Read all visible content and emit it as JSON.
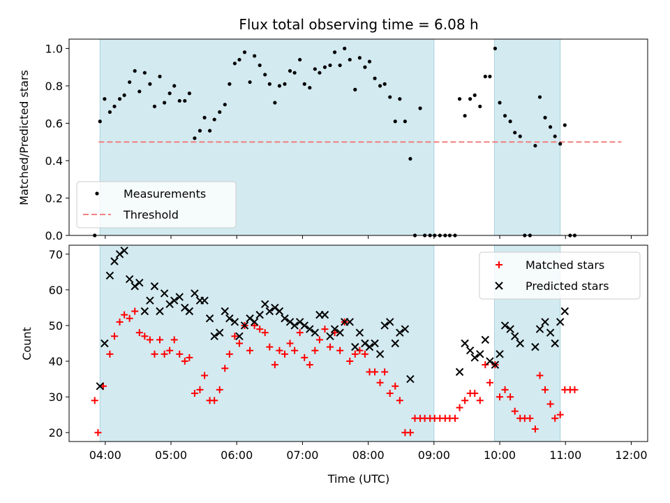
{
  "chart_data": {
    "title": "Flux total observing time = 6.08 h",
    "xlabel": "Time (UTC)",
    "x_unit": "hours UTC",
    "xlim": [
      3.45,
      12.25
    ],
    "xticks": [
      {
        "v": 4,
        "label": "04:00"
      },
      {
        "v": 5,
        "label": "05:00"
      },
      {
        "v": 6,
        "label": "06:00"
      },
      {
        "v": 7,
        "label": "07:00"
      },
      {
        "v": 8,
        "label": "08:00"
      },
      {
        "v": 9,
        "label": "09:00"
      },
      {
        "v": 10,
        "label": "10:00"
      },
      {
        "v": 11,
        "label": "11:00"
      },
      {
        "v": 12,
        "label": "12:00"
      }
    ],
    "shaded_intervals": [
      [
        3.92,
        9.0
      ],
      [
        9.92,
        10.92
      ]
    ],
    "shade_color": "#d3eaf0",
    "top": {
      "type": "scatter",
      "ylabel": "Matched/Predicted stars",
      "ylim": [
        0,
        1.05
      ],
      "yticks": [
        {
          "v": 0,
          "label": "0.0"
        },
        {
          "v": 0.2,
          "label": "0.2"
        },
        {
          "v": 0.4,
          "label": "0.4"
        },
        {
          "v": 0.6,
          "label": "0.6"
        },
        {
          "v": 0.8,
          "label": "0.8"
        },
        {
          "v": 1.0,
          "label": "1.0"
        }
      ],
      "threshold": {
        "value": 0.5,
        "x_range": [
          3.9,
          11.85
        ],
        "color": "#f08080"
      },
      "legend": {
        "position": "lower-left",
        "items": [
          {
            "label": "Measurements",
            "marker": "dot",
            "color": "#000000"
          },
          {
            "label": "Threshold",
            "marker": "dash",
            "color": "#f08080"
          }
        ]
      },
      "measurements": [
        [
          3.84,
          0.0
        ],
        [
          3.92,
          0.61
        ],
        [
          3.99,
          0.73
        ],
        [
          4.07,
          0.66
        ],
        [
          4.14,
          0.69
        ],
        [
          4.22,
          0.73
        ],
        [
          4.29,
          0.75
        ],
        [
          4.37,
          0.82
        ],
        [
          4.45,
          0.88
        ],
        [
          4.52,
          0.77
        ],
        [
          4.6,
          0.87
        ],
        [
          4.68,
          0.81
        ],
        [
          4.75,
          0.69
        ],
        [
          4.83,
          0.85
        ],
        [
          4.9,
          0.71
        ],
        [
          4.98,
          0.76
        ],
        [
          5.05,
          0.8
        ],
        [
          5.13,
          0.72
        ],
        [
          5.21,
          0.72
        ],
        [
          5.28,
          0.76
        ],
        [
          5.36,
          0.52
        ],
        [
          5.44,
          0.56
        ],
        [
          5.51,
          0.63
        ],
        [
          5.59,
          0.56
        ],
        [
          5.66,
          0.62
        ],
        [
          5.74,
          0.66
        ],
        [
          5.82,
          0.7
        ],
        [
          5.89,
          0.81
        ],
        [
          5.97,
          0.92
        ],
        [
          6.04,
          0.94
        ],
        [
          6.12,
          0.98
        ],
        [
          6.2,
          0.82
        ],
        [
          6.27,
          0.96
        ],
        [
          6.35,
          0.91
        ],
        [
          6.43,
          0.86
        ],
        [
          6.5,
          0.81
        ],
        [
          6.58,
          0.71
        ],
        [
          6.65,
          0.8
        ],
        [
          6.73,
          0.81
        ],
        [
          6.81,
          0.88
        ],
        [
          6.88,
          0.87
        ],
        [
          6.96,
          0.94
        ],
        [
          7.03,
          0.81
        ],
        [
          7.11,
          0.79
        ],
        [
          7.19,
          0.89
        ],
        [
          7.26,
          0.87
        ],
        [
          7.34,
          0.9
        ],
        [
          7.42,
          0.91
        ],
        [
          7.49,
          0.98
        ],
        [
          7.57,
          0.91
        ],
        [
          7.64,
          1.0
        ],
        [
          7.72,
          0.94
        ],
        [
          7.8,
          0.78
        ],
        [
          7.87,
          0.95
        ],
        [
          7.95,
          0.9
        ],
        [
          8.02,
          0.93
        ],
        [
          8.1,
          0.84
        ],
        [
          8.18,
          0.8
        ],
        [
          8.25,
          0.81
        ],
        [
          8.33,
          0.74
        ],
        [
          8.41,
          0.61
        ],
        [
          8.48,
          0.73
        ],
        [
          8.56,
          0.61
        ],
        [
          8.64,
          0.41
        ],
        [
          8.71,
          0.0
        ],
        [
          8.79,
          0.68
        ],
        [
          8.86,
          0.0
        ],
        [
          8.94,
          0.0
        ],
        [
          9.01,
          0.0
        ],
        [
          9.09,
          0.0
        ],
        [
          9.17,
          0.0
        ],
        [
          9.24,
          0.0
        ],
        [
          9.32,
          0.0
        ],
        [
          9.39,
          0.73
        ],
        [
          9.47,
          0.64
        ],
        [
          9.55,
          0.73
        ],
        [
          9.62,
          0.75
        ],
        [
          9.7,
          0.69
        ],
        [
          9.78,
          0.85
        ],
        [
          9.85,
          0.85
        ],
        [
          9.93,
          1.0
        ],
        [
          10.0,
          0.71
        ],
        [
          10.08,
          0.64
        ],
        [
          10.16,
          0.61
        ],
        [
          10.23,
          0.55
        ],
        [
          10.31,
          0.53
        ],
        [
          10.38,
          0.0
        ],
        [
          10.46,
          0.0
        ],
        [
          10.54,
          0.48
        ],
        [
          10.61,
          0.74
        ],
        [
          10.69,
          0.63
        ],
        [
          10.77,
          0.58
        ],
        [
          10.84,
          0.53
        ],
        [
          10.92,
          0.49
        ],
        [
          10.99,
          0.59
        ],
        [
          11.07,
          0.0
        ],
        [
          11.14,
          0.0
        ]
      ]
    },
    "bottom": {
      "type": "scatter",
      "ylabel": "Count",
      "ylim": [
        17.5,
        72.5
      ],
      "yticks": [
        {
          "v": 20,
          "label": "20"
        },
        {
          "v": 30,
          "label": "30"
        },
        {
          "v": 40,
          "label": "40"
        },
        {
          "v": 50,
          "label": "50"
        },
        {
          "v": 60,
          "label": "60"
        },
        {
          "v": 70,
          "label": "70"
        }
      ],
      "legend": {
        "position": "top-right",
        "items": [
          {
            "label": "Matched stars",
            "marker": "plus",
            "color": "#ff0000"
          },
          {
            "label": "Predicted stars",
            "marker": "x",
            "color": "#000000"
          }
        ]
      },
      "matched": [
        [
          3.84,
          29
        ],
        [
          3.89,
          20
        ],
        [
          3.97,
          33
        ],
        [
          4.07,
          42
        ],
        [
          4.14,
          47
        ],
        [
          4.22,
          51
        ],
        [
          4.29,
          53
        ],
        [
          4.37,
          52
        ],
        [
          4.45,
          54
        ],
        [
          4.52,
          48
        ],
        [
          4.6,
          47
        ],
        [
          4.68,
          46
        ],
        [
          4.75,
          42
        ],
        [
          4.83,
          46
        ],
        [
          4.9,
          42
        ],
        [
          4.98,
          43
        ],
        [
          5.05,
          46
        ],
        [
          5.13,
          42
        ],
        [
          5.21,
          40
        ],
        [
          5.28,
          41
        ],
        [
          5.36,
          31
        ],
        [
          5.44,
          32
        ],
        [
          5.51,
          36
        ],
        [
          5.59,
          29
        ],
        [
          5.66,
          29
        ],
        [
          5.74,
          32
        ],
        [
          5.82,
          38
        ],
        [
          5.89,
          42
        ],
        [
          5.97,
          47
        ],
        [
          6.04,
          45
        ],
        [
          6.12,
          50
        ],
        [
          6.2,
          43
        ],
        [
          6.27,
          50
        ],
        [
          6.35,
          49
        ],
        [
          6.43,
          48
        ],
        [
          6.5,
          44
        ],
        [
          6.58,
          39
        ],
        [
          6.65,
          43
        ],
        [
          6.73,
          42
        ],
        [
          6.81,
          45
        ],
        [
          6.88,
          43
        ],
        [
          6.96,
          48
        ],
        [
          7.03,
          41
        ],
        [
          7.11,
          39
        ],
        [
          7.19,
          43
        ],
        [
          7.26,
          46
        ],
        [
          7.34,
          49
        ],
        [
          7.42,
          44
        ],
        [
          7.49,
          48
        ],
        [
          7.57,
          43
        ],
        [
          7.64,
          51
        ],
        [
          7.72,
          40
        ],
        [
          7.8,
          42
        ],
        [
          7.87,
          43
        ],
        [
          7.95,
          42
        ],
        [
          8.02,
          37
        ],
        [
          8.1,
          37
        ],
        [
          8.18,
          34
        ],
        [
          8.25,
          37
        ],
        [
          8.33,
          31
        ],
        [
          8.41,
          33
        ],
        [
          8.48,
          29
        ],
        [
          8.56,
          20
        ],
        [
          8.64,
          20
        ],
        [
          8.71,
          24
        ],
        [
          8.79,
          24
        ],
        [
          8.86,
          24
        ],
        [
          8.94,
          24
        ],
        [
          9.01,
          24
        ],
        [
          9.09,
          24
        ],
        [
          9.17,
          24
        ],
        [
          9.24,
          24
        ],
        [
          9.32,
          24
        ],
        [
          9.39,
          27
        ],
        [
          9.47,
          29
        ],
        [
          9.55,
          31
        ],
        [
          9.62,
          31
        ],
        [
          9.7,
          29
        ],
        [
          9.78,
          39
        ],
        [
          9.85,
          34
        ],
        [
          9.93,
          39
        ],
        [
          10.0,
          30
        ],
        [
          10.08,
          32
        ],
        [
          10.16,
          30
        ],
        [
          10.23,
          26
        ],
        [
          10.31,
          24
        ],
        [
          10.38,
          24
        ],
        [
          10.46,
          24
        ],
        [
          10.54,
          21
        ],
        [
          10.61,
          36
        ],
        [
          10.69,
          32
        ],
        [
          10.77,
          28
        ],
        [
          10.84,
          24
        ],
        [
          10.92,
          25
        ],
        [
          10.99,
          32
        ],
        [
          11.07,
          32
        ],
        [
          11.14,
          32
        ]
      ],
      "predicted": [
        [
          3.92,
          33
        ],
        [
          3.99,
          45
        ],
        [
          4.07,
          64
        ],
        [
          4.14,
          68
        ],
        [
          4.22,
          70
        ],
        [
          4.29,
          71
        ],
        [
          4.37,
          63
        ],
        [
          4.45,
          61
        ],
        [
          4.52,
          62
        ],
        [
          4.6,
          54
        ],
        [
          4.68,
          57
        ],
        [
          4.75,
          61
        ],
        [
          4.83,
          54
        ],
        [
          4.9,
          59
        ],
        [
          4.98,
          56
        ],
        [
          5.05,
          57
        ],
        [
          5.13,
          58
        ],
        [
          5.21,
          55
        ],
        [
          5.28,
          54
        ],
        [
          5.36,
          59
        ],
        [
          5.44,
          57
        ],
        [
          5.51,
          57
        ],
        [
          5.59,
          52
        ],
        [
          5.66,
          47
        ],
        [
          5.74,
          48
        ],
        [
          5.82,
          54
        ],
        [
          5.89,
          52
        ],
        [
          5.97,
          51
        ],
        [
          6.04,
          47
        ],
        [
          6.12,
          50
        ],
        [
          6.2,
          52
        ],
        [
          6.27,
          51
        ],
        [
          6.35,
          53
        ],
        [
          6.43,
          56
        ],
        [
          6.5,
          54
        ],
        [
          6.58,
          55
        ],
        [
          6.65,
          54
        ],
        [
          6.73,
          52
        ],
        [
          6.81,
          51
        ],
        [
          6.88,
          50
        ],
        [
          6.96,
          51
        ],
        [
          7.03,
          50
        ],
        [
          7.11,
          49
        ],
        [
          7.19,
          48
        ],
        [
          7.26,
          53
        ],
        [
          7.34,
          53
        ],
        [
          7.42,
          47
        ],
        [
          7.49,
          49
        ],
        [
          7.57,
          48
        ],
        [
          7.64,
          51
        ],
        [
          7.72,
          51
        ],
        [
          7.8,
          44
        ],
        [
          7.87,
          48
        ],
        [
          7.95,
          45
        ],
        [
          8.02,
          44
        ],
        [
          8.1,
          45
        ],
        [
          8.18,
          42
        ],
        [
          8.25,
          50
        ],
        [
          8.33,
          51
        ],
        [
          8.41,
          45
        ],
        [
          8.48,
          48
        ],
        [
          8.56,
          49
        ],
        [
          8.64,
          35
        ],
        [
          9.39,
          37
        ],
        [
          9.47,
          45
        ],
        [
          9.55,
          43
        ],
        [
          9.62,
          41
        ],
        [
          9.7,
          42
        ],
        [
          9.78,
          46
        ],
        [
          9.85,
          40
        ],
        [
          9.93,
          39
        ],
        [
          10.0,
          42
        ],
        [
          10.08,
          50
        ],
        [
          10.16,
          49
        ],
        [
          10.23,
          47
        ],
        [
          10.31,
          45
        ],
        [
          10.54,
          44
        ],
        [
          10.61,
          49
        ],
        [
          10.69,
          51
        ],
        [
          10.77,
          48
        ],
        [
          10.84,
          45
        ],
        [
          10.92,
          51
        ],
        [
          10.99,
          54
        ]
      ]
    }
  }
}
